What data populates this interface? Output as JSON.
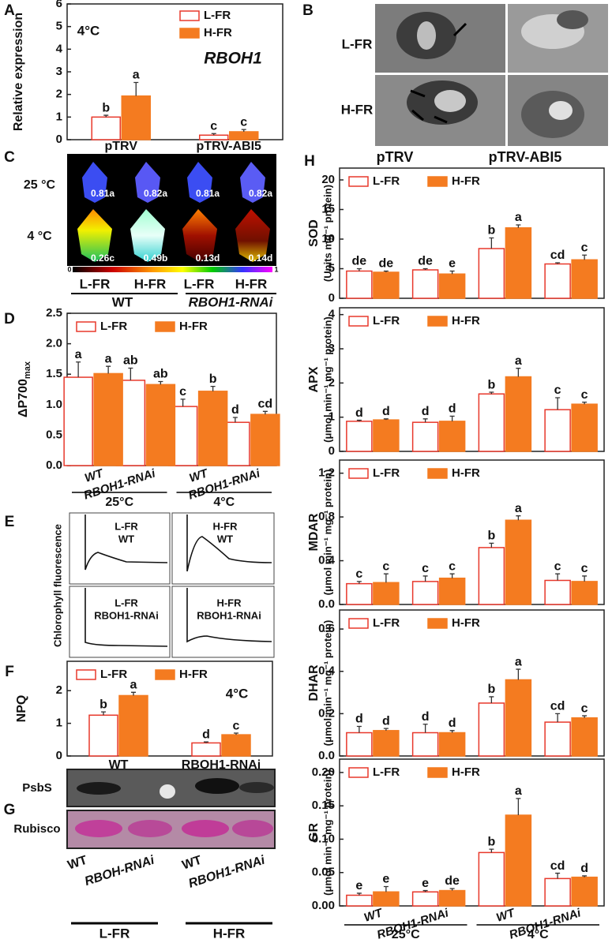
{
  "panel_labels": [
    "A",
    "B",
    "C",
    "D",
    "E",
    "F",
    "G",
    "H"
  ],
  "B": {
    "rows": [
      "L-FR",
      "H-FR"
    ]
  },
  "C": {
    "rows": [
      "25 °C",
      "4 °C"
    ],
    "values": [
      "0.81a",
      "0.82a",
      "0.81a",
      "0.82a",
      "0.26c",
      "0.49b",
      "0.13d",
      "0.14d"
    ],
    "scale": [
      "0",
      "1"
    ],
    "columns": [
      "L-FR",
      "H-FR",
      "L-FR",
      "H-FR"
    ],
    "groups": [
      "WT",
      "RBOH1-RNAi"
    ]
  },
  "E": {
    "ylabel": "Chlorophyll fluorescence",
    "traces": [
      [
        "L-FR",
        "WT"
      ],
      [
        "H-FR",
        "WT"
      ],
      [
        "L-FR",
        "RBOH1-RNAi"
      ],
      [
        "H-FR",
        "RBOH1-RNAi"
      ]
    ]
  },
  "G": {
    "rows": [
      "PsbS",
      "Rubisco"
    ],
    "lanes": [
      "WT",
      "RBOH-RNAi",
      "WT",
      "RBOH1-RNAi"
    ],
    "groups": [
      "L-FR",
      "H-FR"
    ]
  },
  "H": {
    "columns": [
      "pTRV",
      "pTRV-ABI5"
    ]
  },
  "chart_data": [
    {
      "type": "bar",
      "ylabel": "Relative expression",
      "annotation": "4°C",
      "gene": "RBOH1",
      "categories": [
        "pTRV",
        "pTRV-ABI5"
      ],
      "ylim": [
        0,
        6
      ],
      "yticks": [
        0,
        1,
        2,
        3,
        4,
        5,
        6
      ],
      "legend": "upper right",
      "series": [
        {
          "name": "L-FR",
          "color": "#e8382b",
          "filled": false,
          "values": [
            1.0,
            0.2
          ],
          "errors": [
            0.08,
            0.07
          ],
          "letters": [
            "b",
            "c"
          ]
        },
        {
          "name": "H-FR",
          "color": "#f47b20",
          "filled": true,
          "values": [
            1.93,
            0.35
          ],
          "errors": [
            0.6,
            0.1
          ],
          "letters": [
            "a",
            "c"
          ]
        }
      ]
    },
    {
      "type": "bar",
      "ylabel": "ΔP700",
      "ylabel_subscript": "max",
      "categories": [
        "WT",
        "RBOH1-RNAi",
        "WT",
        "RBOH1-RNAi"
      ],
      "groups": [
        "25°C",
        "4°C"
      ],
      "ylim": [
        0,
        2.5
      ],
      "yticks": [
        {
          "value": 0,
          "label": "0.0"
        },
        0.5,
        {
          "value": 1,
          "label": "1.0"
        },
        1.5,
        {
          "value": 2,
          "label": "2.0"
        },
        2.5
      ],
      "legend": "upper left",
      "series": [
        {
          "name": "L-FR",
          "color": "#e8382b",
          "filled": false,
          "values": [
            1.45,
            1.4,
            0.97,
            0.71
          ],
          "errors": [
            0.25,
            0.2,
            0.12,
            0.08
          ],
          "letters": [
            "a",
            "ab",
            "c",
            "d"
          ]
        },
        {
          "name": "H-FR",
          "color": "#f47b20",
          "filled": true,
          "values": [
            1.51,
            1.33,
            1.22,
            0.84
          ],
          "errors": [
            0.12,
            0.05,
            0.08,
            0.05
          ],
          "letters": [
            "a",
            "ab",
            "b",
            "cd"
          ]
        }
      ]
    },
    {
      "type": "bar",
      "ylabel": "NPQ",
      "annotation": "4°C",
      "categories": [
        "WT",
        "RBOH1-RNAi"
      ],
      "ylim": [
        0,
        2.9
      ],
      "yticks": [
        0,
        1,
        2
      ],
      "legend": "upper left",
      "series": [
        {
          "name": "L-FR",
          "color": "#e8382b",
          "filled": false,
          "values": [
            1.25,
            0.4
          ],
          "errors": [
            0.1,
            0.03
          ],
          "letters": [
            "b",
            "d"
          ]
        },
        {
          "name": "H-FR",
          "color": "#f47b20",
          "filled": true,
          "values": [
            1.85,
            0.65
          ],
          "errors": [
            0.1,
            0.05
          ],
          "letters": [
            "a",
            "c"
          ]
        }
      ]
    },
    {
      "type": "bar",
      "ylabel": [
        "SOD",
        "(Units mg⁻¹ protein)"
      ],
      "categories": [
        null,
        null,
        null,
        null
      ],
      "ylim": [
        0,
        22
      ],
      "yticks": [
        0,
        5,
        10,
        15,
        20
      ],
      "legend": "upper left",
      "series": [
        {
          "name": "L-FR",
          "color": "#e8382b",
          "filled": false,
          "values": [
            4.6,
            4.8,
            8.4,
            5.8
          ],
          "errors": [
            0.4,
            0.2,
            1.8,
            0.2
          ],
          "letters": [
            "de",
            "de",
            "b",
            "cd"
          ]
        },
        {
          "name": "H-FR",
          "color": "#f47b20",
          "filled": true,
          "values": [
            4.4,
            4.1,
            11.9,
            6.5
          ],
          "errors": [
            0.2,
            0.5,
            0.5,
            0.8
          ],
          "letters": [
            "de",
            "e",
            "a",
            "c"
          ]
        }
      ]
    },
    {
      "type": "bar",
      "ylabel": [
        "APX",
        "(μmol min⁻¹ mg⁻¹ protein)"
      ],
      "categories": [
        null,
        null,
        null,
        null
      ],
      "ylim": [
        0,
        4.2
      ],
      "yticks": [
        0,
        1,
        2,
        3,
        4
      ],
      "legend": "upper left",
      "series": [
        {
          "name": "L-FR",
          "color": "#e8382b",
          "filled": false,
          "values": [
            0.88,
            0.85,
            1.68,
            1.22
          ],
          "errors": [
            0.03,
            0.1,
            0.05,
            0.35
          ],
          "letters": [
            "d",
            "d",
            "b",
            "c"
          ]
        },
        {
          "name": "H-FR",
          "color": "#f47b20",
          "filled": true,
          "values": [
            0.92,
            0.88,
            2.18,
            1.38
          ],
          "errors": [
            0.03,
            0.15,
            0.25,
            0.06
          ],
          "letters": [
            "d",
            "d",
            "a",
            "c"
          ]
        }
      ]
    },
    {
      "type": "bar",
      "ylabel": [
        "MDAR",
        "(μmol min⁻¹ mg⁻¹ protein)"
      ],
      "categories": [
        null,
        null,
        null,
        null
      ],
      "ylim": [
        0,
        1.32
      ],
      "yticks": [
        {
          "value": 0,
          "label": "0.0"
        },
        0.4,
        0.8,
        1.2
      ],
      "legend": "upper left",
      "series": [
        {
          "name": "L-FR",
          "color": "#e8382b",
          "filled": false,
          "values": [
            0.19,
            0.21,
            0.52,
            0.22
          ],
          "errors": [
            0.02,
            0.05,
            0.04,
            0.06
          ],
          "letters": [
            "c",
            "c",
            "b",
            "c"
          ]
        },
        {
          "name": "H-FR",
          "color": "#f47b20",
          "filled": true,
          "values": [
            0.2,
            0.24,
            0.77,
            0.21
          ],
          "errors": [
            0.08,
            0.04,
            0.04,
            0.05
          ],
          "letters": [
            "c",
            "c",
            "a",
            "c"
          ]
        }
      ]
    },
    {
      "type": "bar",
      "ylabel": [
        "DHAR",
        "(μmol min⁻¹ mg⁻¹ protein)"
      ],
      "categories": [
        null,
        null,
        null,
        null
      ],
      "ylim": [
        0,
        0.69
      ],
      "yticks": [
        {
          "value": 0,
          "label": "0.0"
        },
        0.2,
        0.4,
        0.6
      ],
      "legend": "upper left",
      "series": [
        {
          "name": "L-FR",
          "color": "#e8382b",
          "filled": false,
          "values": [
            0.11,
            0.11,
            0.25,
            0.16
          ],
          "errors": [
            0.03,
            0.04,
            0.03,
            0.04
          ],
          "letters": [
            "d",
            "d",
            "b",
            "cd"
          ]
        },
        {
          "name": "H-FR",
          "color": "#f47b20",
          "filled": true,
          "values": [
            0.12,
            0.11,
            0.36,
            0.18
          ],
          "errors": [
            0.01,
            0.01,
            0.05,
            0.01
          ],
          "letters": [
            "d",
            "d",
            "a",
            "c"
          ]
        }
      ]
    },
    {
      "type": "bar",
      "ylabel": [
        "GR",
        "(μmol min⁻¹ mg⁻¹ protein)"
      ],
      "categories": [
        "WT",
        "RBOH1-RNAi",
        "WT",
        "RBOH1-RNAi"
      ],
      "groups": [
        "25°C",
        "4°C"
      ],
      "ylim": [
        0,
        0.22
      ],
      "yticks": [
        {
          "value": 0,
          "label": "0.00"
        },
        0.05,
        {
          "value": 0.1,
          "label": "0.10"
        },
        0.15,
        {
          "value": 0.2,
          "label": "0.20"
        }
      ],
      "legend": "upper left",
      "series": [
        {
          "name": "L-FR",
          "color": "#e8382b",
          "filled": false,
          "values": [
            0.016,
            0.021,
            0.08,
            0.041
          ],
          "errors": [
            0.003,
            0.002,
            0.005,
            0.008
          ],
          "letters": [
            "e",
            "e",
            "b",
            "cd"
          ]
        },
        {
          "name": "H-FR",
          "color": "#f47b20",
          "filled": true,
          "values": [
            0.021,
            0.023,
            0.136,
            0.043
          ],
          "errors": [
            0.008,
            0.003,
            0.025,
            0.002
          ],
          "letters": [
            "e",
            "de",
            "a",
            "d"
          ]
        }
      ]
    }
  ]
}
